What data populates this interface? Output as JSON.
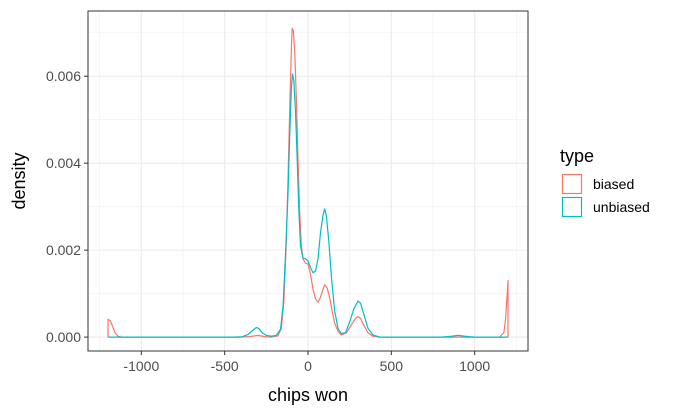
{
  "chart_data": {
    "type": "line",
    "title": "",
    "xlabel": "chips won",
    "ylabel": "density",
    "xlim": [
      -1320,
      1320
    ],
    "ylim": [
      -0.00032,
      0.0075
    ],
    "x_ticks": [
      -1000,
      -500,
      0,
      500,
      1000
    ],
    "x_tick_labels": [
      "-1000",
      "-500",
      "0",
      "500",
      "1000"
    ],
    "y_ticks": [
      0.0,
      0.002,
      0.004,
      0.006
    ],
    "y_tick_labels": [
      "0.000",
      "0.002",
      "0.004",
      "0.006"
    ],
    "grid": true,
    "legend": {
      "title": "type",
      "position": "right"
    },
    "series": [
      {
        "name": "biased",
        "color": "#F8766D",
        "points": [
          [
            -1200,
            0.0
          ],
          [
            -1200,
            0.00041
          ],
          [
            -1185,
            0.00037
          ],
          [
            -1170,
            0.00022
          ],
          [
            -1155,
            8e-05
          ],
          [
            -1140,
            2e-05
          ],
          [
            -1120,
            0.0
          ],
          [
            -800,
            0.0
          ],
          [
            -450,
            0.0
          ],
          [
            -350,
            1e-05
          ],
          [
            -300,
            4e-05
          ],
          [
            -260,
            1e-05
          ],
          [
            -220,
            0.0
          ],
          [
            -180,
            3e-05
          ],
          [
            -160,
            0.0002
          ],
          [
            -145,
            0.0008
          ],
          [
            -130,
            0.0022
          ],
          [
            -120,
            0.0036
          ],
          [
            -110,
            0.0052
          ],
          [
            -100,
            0.0066
          ],
          [
            -95,
            0.0071
          ],
          [
            -88,
            0.00705
          ],
          [
            -80,
            0.0066
          ],
          [
            -70,
            0.0055
          ],
          [
            -60,
            0.0041
          ],
          [
            -50,
            0.0029
          ],
          [
            -40,
            0.0021
          ],
          [
            -30,
            0.0018
          ],
          [
            -15,
            0.0017
          ],
          [
            0,
            0.00168
          ],
          [
            15,
            0.00145
          ],
          [
            30,
            0.0011
          ],
          [
            45,
            0.00088
          ],
          [
            60,
            0.0008
          ],
          [
            75,
            0.00092
          ],
          [
            90,
            0.0011
          ],
          [
            100,
            0.0012
          ],
          [
            115,
            0.00113
          ],
          [
            130,
            0.0009
          ],
          [
            145,
            0.0006
          ],
          [
            160,
            0.00032
          ],
          [
            180,
            0.00013
          ],
          [
            200,
            5e-05
          ],
          [
            230,
            0.0001
          ],
          [
            260,
            0.00028
          ],
          [
            285,
            0.00043
          ],
          [
            300,
            0.00047
          ],
          [
            315,
            0.00043
          ],
          [
            335,
            0.00027
          ],
          [
            360,
            0.0001
          ],
          [
            390,
            2e-05
          ],
          [
            430,
            0.0
          ],
          [
            800,
            0.0
          ],
          [
            1050,
            0.0
          ],
          [
            1150,
            0.0
          ],
          [
            1175,
            0.0001
          ],
          [
            1185,
            0.0004
          ],
          [
            1195,
            0.001
          ],
          [
            1200,
            0.0013
          ],
          [
            1200,
            0.0
          ]
        ]
      },
      {
        "name": "unbiased",
        "color": "#00BFC4",
        "points": [
          [
            -1200,
            0.0
          ],
          [
            -900,
            0.0
          ],
          [
            -500,
            0.0
          ],
          [
            -400,
            0.0
          ],
          [
            -360,
            6e-05
          ],
          [
            -330,
            0.00016
          ],
          [
            -310,
            0.00022
          ],
          [
            -295,
            0.0002
          ],
          [
            -275,
            0.0001
          ],
          [
            -250,
            4e-05
          ],
          [
            -220,
            2e-05
          ],
          [
            -190,
            4e-05
          ],
          [
            -165,
            0.00018
          ],
          [
            -150,
            0.0007
          ],
          [
            -135,
            0.0019
          ],
          [
            -120,
            0.0033
          ],
          [
            -110,
            0.0046
          ],
          [
            -100,
            0.0057
          ],
          [
            -93,
            0.00605
          ],
          [
            -85,
            0.0059
          ],
          [
            -75,
            0.0052
          ],
          [
            -65,
            0.0041
          ],
          [
            -55,
            0.0029
          ],
          [
            -45,
            0.0021
          ],
          [
            -30,
            0.00182
          ],
          [
            -15,
            0.0018
          ],
          [
            0,
            0.00175
          ],
          [
            15,
            0.0016
          ],
          [
            30,
            0.00148
          ],
          [
            45,
            0.00152
          ],
          [
            60,
            0.0018
          ],
          [
            75,
            0.0024
          ],
          [
            90,
            0.0028
          ],
          [
            100,
            0.00295
          ],
          [
            110,
            0.0028
          ],
          [
            125,
            0.0022
          ],
          [
            140,
            0.0014
          ],
          [
            160,
            0.0006
          ],
          [
            180,
            0.0002
          ],
          [
            200,
            8e-05
          ],
          [
            225,
            0.0001
          ],
          [
            250,
            0.00035
          ],
          [
            275,
            0.00065
          ],
          [
            300,
            0.00083
          ],
          [
            315,
            0.00078
          ],
          [
            335,
            0.00052
          ],
          [
            360,
            0.0002
          ],
          [
            390,
            5e-05
          ],
          [
            430,
            0.0
          ],
          [
            800,
            0.0
          ],
          [
            860,
            2e-05
          ],
          [
            900,
            4e-05
          ],
          [
            940,
            2e-05
          ],
          [
            1000,
            0.0
          ],
          [
            1200,
            0.0
          ]
        ]
      }
    ]
  }
}
